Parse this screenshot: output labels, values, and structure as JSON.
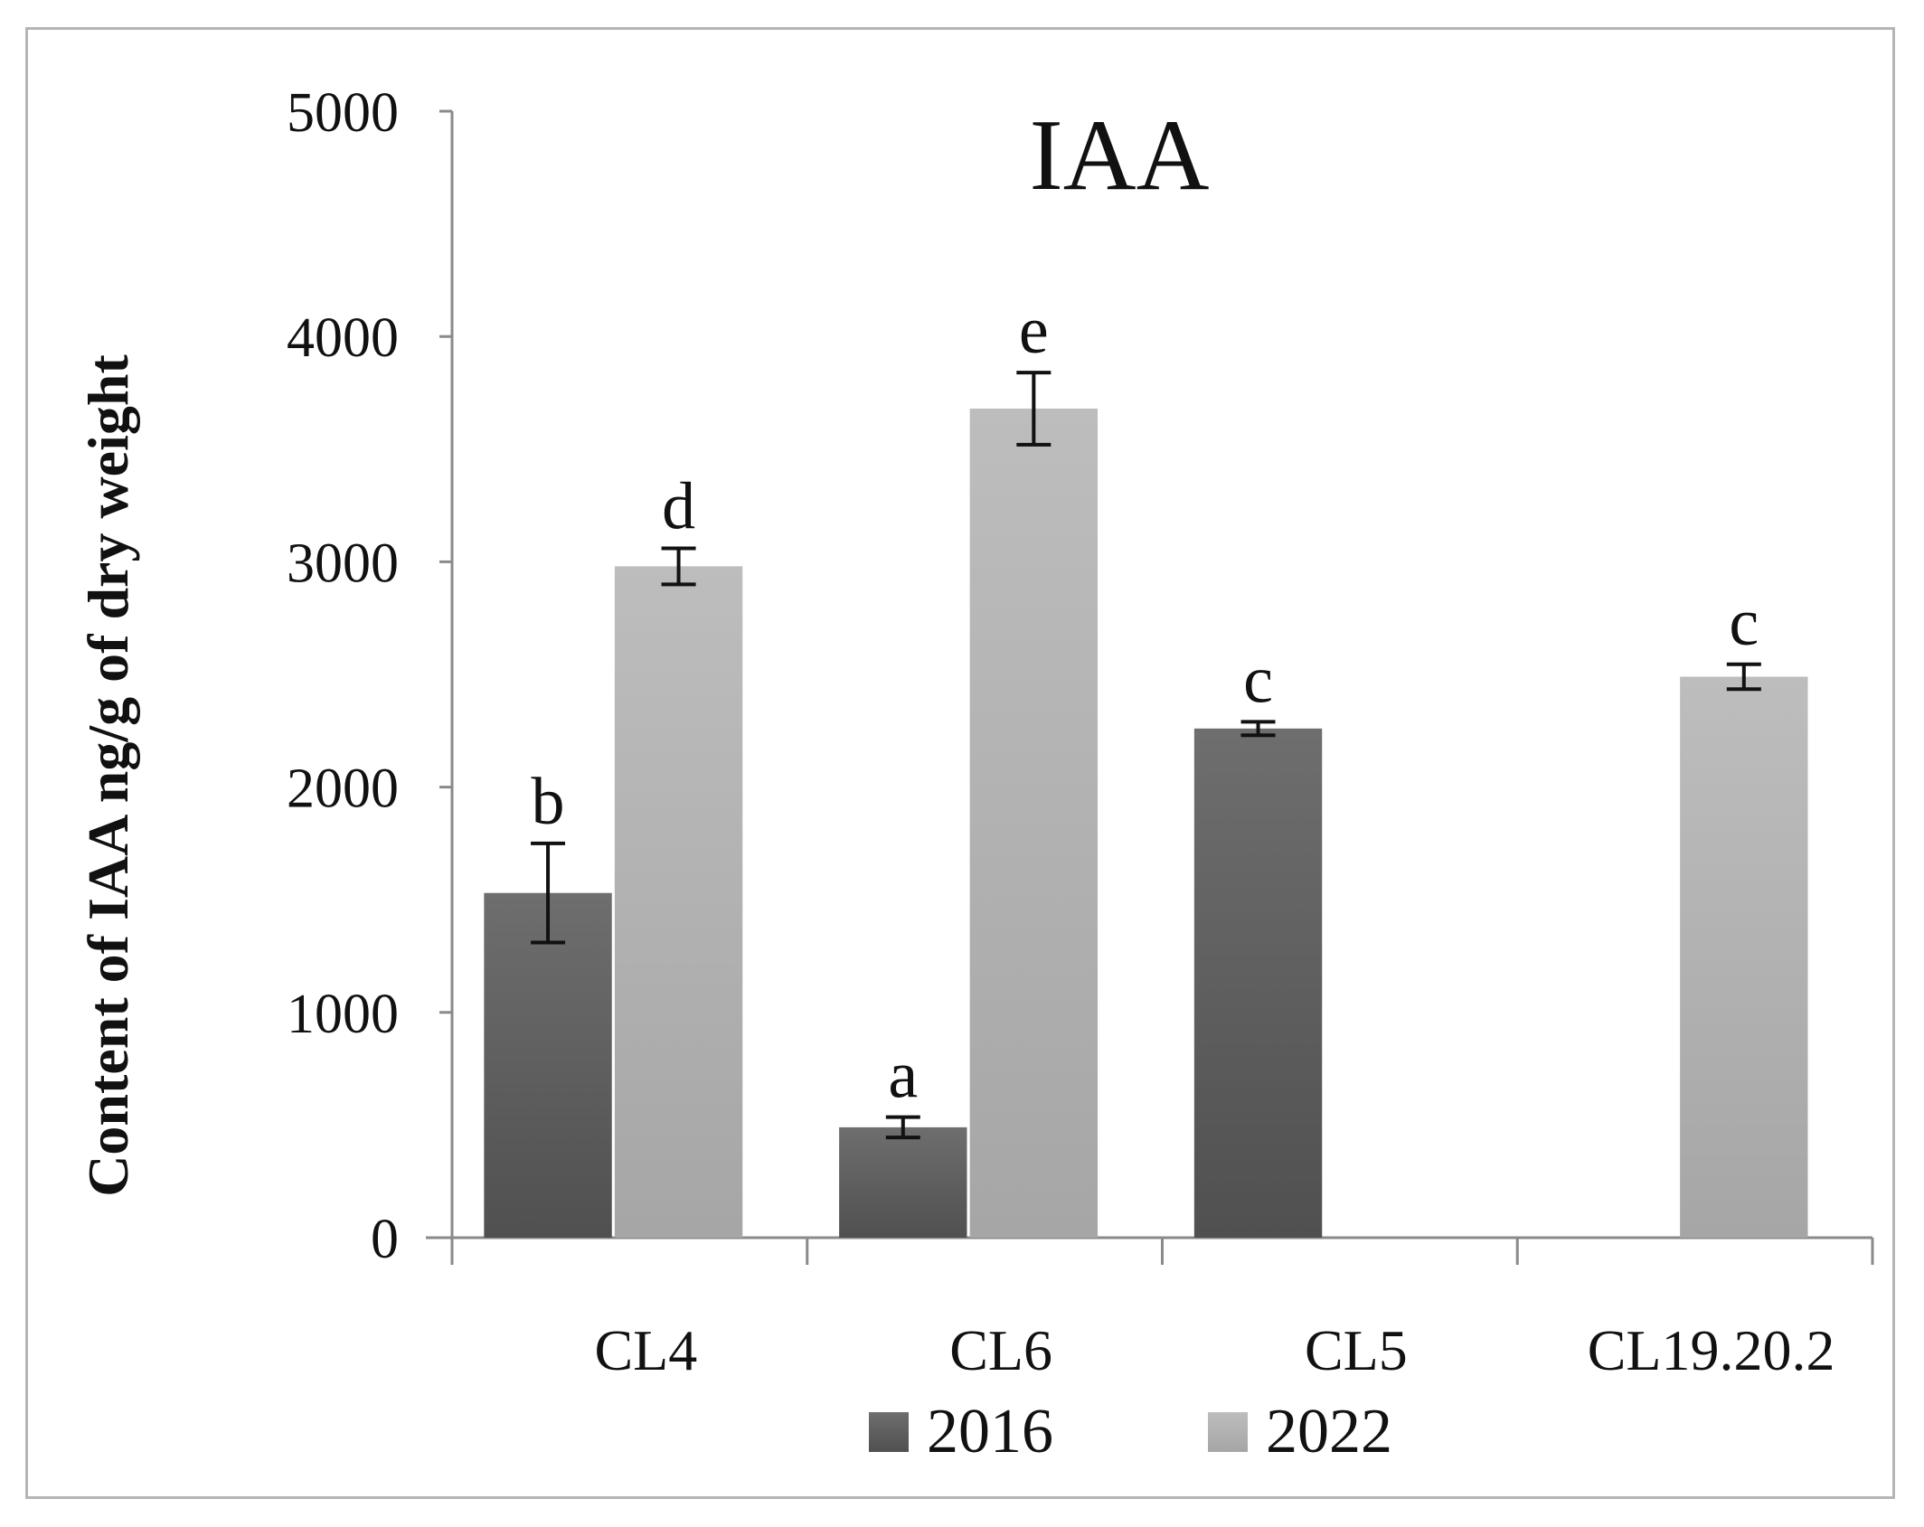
{
  "chart_data": {
    "type": "bar",
    "title": "IAA",
    "xlabel": "",
    "ylabel": "Content of IAA ng/g of dry weight",
    "ylim": [
      0,
      5000
    ],
    "yticks": [
      0,
      1000,
      2000,
      3000,
      4000,
      5000
    ],
    "grid": false,
    "legend_position": "bottom-center",
    "categories": [
      "CL4",
      "CL6",
      "CL5",
      "CL19.20.2"
    ],
    "series": [
      {
        "name": "2016",
        "color": "#5f5f5f",
        "values": [
          1530,
          490,
          2260,
          null
        ],
        "errors": [
          220,
          45,
          30,
          null
        ],
        "labels": [
          "b",
          "a",
          "c",
          null
        ]
      },
      {
        "name": "2022",
        "color": "#b3b3b3",
        "values": [
          2980,
          3680,
          null,
          2490
        ],
        "errors": [
          80,
          160,
          null,
          55
        ],
        "labels": [
          "d",
          "e",
          null,
          "c"
        ]
      }
    ]
  }
}
